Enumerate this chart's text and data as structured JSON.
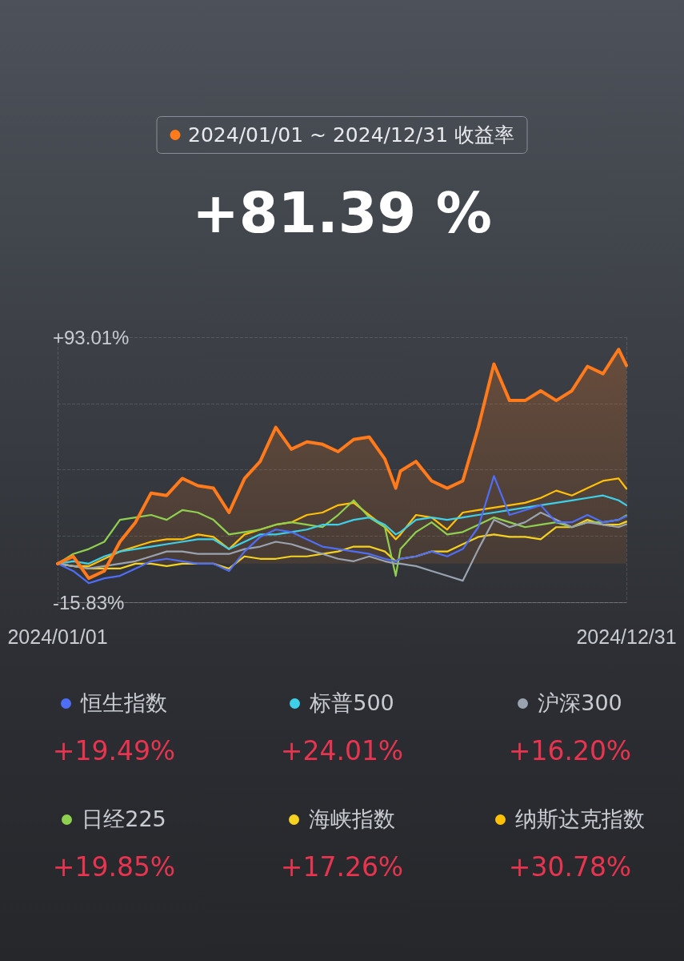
{
  "chart_data": {
    "type": "line",
    "title": "2024/01/01 ~ 2024/12/31 收益率",
    "subtitle": "+81.39 %",
    "x": [
      "2024-01-01",
      "2024-01-11",
      "2024-01-21",
      "2024-01-31",
      "2024-02-10",
      "2024-02-20",
      "2024-03-01",
      "2024-03-11",
      "2024-03-21",
      "2024-03-31",
      "2024-04-10",
      "2024-04-20",
      "2024-04-30",
      "2024-05-10",
      "2024-05-20",
      "2024-05-30",
      "2024-06-09",
      "2024-06-19",
      "2024-06-29",
      "2024-07-09",
      "2024-07-19",
      "2024-07-29",
      "2024-08-05",
      "2024-08-08",
      "2024-08-18",
      "2024-08-28",
      "2024-09-07",
      "2024-09-17",
      "2024-09-27",
      "2024-10-07",
      "2024-10-17",
      "2024-10-27",
      "2024-11-06",
      "2024-11-16",
      "2024-11-26",
      "2024-12-06",
      "2024-12-16",
      "2024-12-26",
      "2024-12-31"
    ],
    "series": [
      {
        "type": "area",
        "color": "#ff7a1a",
        "values": [
          0,
          3,
          -6,
          -3,
          9,
          17,
          29,
          28,
          35,
          32,
          31,
          21,
          35,
          42,
          56,
          47,
          50,
          49,
          46,
          51,
          52,
          43,
          31,
          38,
          42,
          34,
          31,
          34,
          56,
          82,
          67,
          67,
          71,
          67,
          71,
          81,
          78,
          88,
          81.39
        ]
      },
      {
        "name": "恒生指数",
        "color": "#4f6ef7",
        "values": [
          0,
          -3,
          -8,
          -6,
          -5,
          -2,
          1,
          2,
          1,
          0,
          0,
          -3,
          5,
          11,
          14,
          13,
          10,
          7,
          6,
          5,
          4,
          2,
          1,
          2,
          3,
          5,
          3,
          6,
          15,
          36,
          20,
          22,
          24,
          17,
          17,
          20,
          17,
          18,
          19.49
        ]
      },
      {
        "name": "标普500",
        "color": "#3dd0e8",
        "values": [
          0,
          1,
          0,
          3,
          5,
          6,
          7,
          8,
          9,
          10,
          10,
          6,
          9,
          12,
          12,
          13,
          14,
          16,
          16,
          18,
          19,
          16,
          12,
          13,
          18,
          19,
          18,
          19,
          20,
          21,
          22,
          23,
          24,
          25,
          26,
          27,
          28,
          26,
          24.01
        ]
      },
      {
        "name": "沪深300",
        "color": "#9aa3b0",
        "values": [
          0,
          -1,
          -2,
          -1,
          0,
          1,
          3,
          5,
          5,
          4,
          4,
          4,
          6,
          7,
          9,
          8,
          6,
          4,
          2,
          1,
          3,
          1,
          0,
          0,
          -1,
          -3,
          -5,
          -7,
          6,
          18,
          15,
          17,
          21,
          18,
          15,
          17,
          16,
          15,
          16.2
        ]
      },
      {
        "name": "日经225",
        "color": "#8fd14f",
        "values": [
          0,
          4,
          6,
          9,
          18,
          19,
          20,
          18,
          22,
          21,
          18,
          12,
          13,
          14,
          16,
          17,
          16,
          15,
          20,
          26,
          19,
          15,
          -5,
          6,
          13,
          17,
          12,
          13,
          16,
          19,
          17,
          15,
          16,
          17,
          15,
          17,
          17,
          18,
          19.85
        ]
      },
      {
        "name": "海峡指数",
        "color": "#f5d21f",
        "values": [
          0,
          -1,
          -2,
          -2,
          -2,
          0,
          0,
          -1,
          0,
          0,
          0,
          -2,
          3,
          2,
          2,
          3,
          3,
          4,
          5,
          7,
          7,
          5,
          1,
          2,
          3,
          5,
          5,
          8,
          11,
          12,
          11,
          11,
          10,
          15,
          15,
          18,
          16,
          16,
          17.26
        ]
      },
      {
        "name": "纳斯达克指数",
        "color": "#ffc107",
        "values": [
          0,
          -1,
          -1,
          2,
          5,
          7,
          9,
          10,
          10,
          12,
          11,
          6,
          12,
          14,
          16,
          17,
          20,
          21,
          24,
          25,
          20,
          15,
          10,
          12,
          20,
          19,
          14,
          21,
          22,
          23,
          24,
          25,
          27,
          30,
          28,
          31,
          34,
          35,
          30.78
        ]
      }
    ],
    "xlim": [
      "2024-01-01",
      "2024-12-31"
    ],
    "xticks": [
      {
        "value": "2024-01-01",
        "label": "2024/01/01"
      },
      {
        "value": "2024-12-31",
        "label": "2024/12/31"
      }
    ],
    "ylim": [
      -15.83,
      93.01
    ],
    "yticks": [
      {
        "value": -15.83,
        "label": "-15.83%"
      },
      {
        "value": 11.38,
        "label": null
      },
      {
        "value": 38.59,
        "label": null
      },
      {
        "value": 65.8,
        "label": null
      },
      {
        "value": 93.01,
        "label": "+93.01%"
      }
    ],
    "grid": true,
    "marker": "none",
    "line_style": "solid",
    "legend": "bottom",
    "annotations": [
      "+19.49%",
      "+24.01%",
      "+16.20%",
      "+19.85%",
      "+17.26%",
      "+30.78%"
    ]
  }
}
